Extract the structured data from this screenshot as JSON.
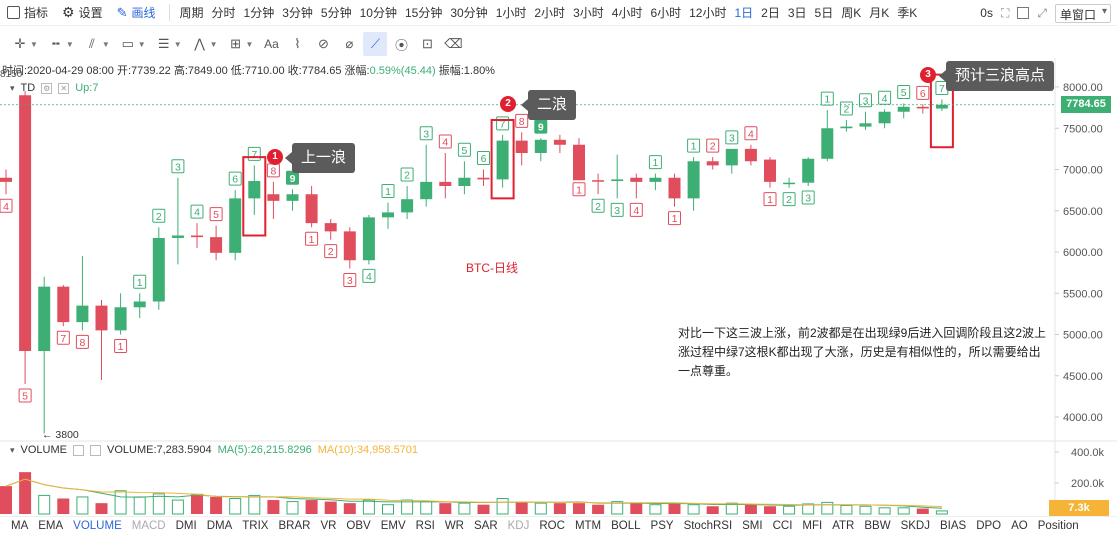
{
  "toolbar": {
    "indicators_label": "指标",
    "settings_label": "设置",
    "draw_label": "画线",
    "period_label": "周期",
    "periods": [
      "分时",
      "1分钟",
      "3分钟",
      "5分钟",
      "10分钟",
      "15分钟",
      "30分钟",
      "1小时",
      "2小时",
      "3小时",
      "4小时",
      "6小时",
      "12小时",
      "1日",
      "2日",
      "3日",
      "5日",
      "周K",
      "月K",
      "季K"
    ],
    "active_period": "1日",
    "countdown": "0s",
    "window_select": "单窗口"
  },
  "info": {
    "time": "时间:2020-04-29 08:00",
    "open": "开:7739.22",
    "high": "高:7849.00",
    "low": "低:7710.00",
    "close": "收:7784.65",
    "change_label": "涨幅:",
    "change": "0.59%(45.44)",
    "amplitude": "振幅:1.80%"
  },
  "td_legend": {
    "name": "TD",
    "value": "Up:7"
  },
  "volume_legend": {
    "name": "VOLUME",
    "volume": "VOLUME:7,283.5904",
    "ma5": "MA(5):26,215.8296",
    "ma10": "MA(10):34,958.5701"
  },
  "price_tag": "7784.65",
  "vol_tag": "7.3k",
  "callouts": [
    {
      "num": "1",
      "text": "上一浪"
    },
    {
      "num": "2",
      "text": "二浪"
    },
    {
      "num": "3",
      "text": "预计三浪高点"
    }
  ],
  "note": "对比一下这三波上涨，前2波都是在出现绿9后进入回调阶段且这2波上涨过程中绿7这根K都出现了大涨，历史是有相似性的，所以需要给出一点尊重。",
  "chart_label": "BTC-日线",
  "low_marker": "← 3800",
  "top_price": "8150",
  "indicator_tabs": [
    "MA",
    "EMA",
    "VOLUME",
    "MACD",
    "DMI",
    "DMA",
    "TRIX",
    "BRAR",
    "VR",
    "OBV",
    "EMV",
    "RSI",
    "WR",
    "SAR",
    "KDJ",
    "ROC",
    "MTM",
    "BOLL",
    "PSY",
    "StochRSI",
    "SMI",
    "CCI",
    "MFI",
    "ATR",
    "BBW",
    "SKDJ",
    "BIAS",
    "DPO",
    "AO",
    "Position"
  ],
  "active_tab": "VOLUME",
  "dim_tabs": [
    "MACD",
    "KDJ"
  ],
  "colors": {
    "up": "#3dae74",
    "down": "#e04d5c",
    "accent": "#2b66d9",
    "ma5": "#3dae74",
    "ma10": "#f5b437",
    "box": "#e0202f"
  },
  "chart_data": {
    "type": "candlestick",
    "y_axis_ticks": [
      8000,
      7500,
      7000,
      6500,
      6000,
      5500,
      5000,
      4500,
      4000
    ],
    "ylim": [
      3700,
      8300
    ],
    "volume_ticks": [
      "400.0k",
      "200.0k"
    ],
    "candles": [
      {
        "o": 6900,
        "h": 7000,
        "l": 6700,
        "c": 6850,
        "td": "4",
        "tdPos": "below",
        "tdUp": false
      },
      {
        "o": 7900,
        "h": 7950,
        "l": 4400,
        "c": 4800,
        "td": "5",
        "tdPos": "below",
        "tdUp": false
      },
      {
        "o": 4800,
        "h": 5700,
        "l": 3800,
        "c": 5580,
        "td": "",
        "tdPos": "",
        "tdUp": true
      },
      {
        "o": 5580,
        "h": 5600,
        "l": 5100,
        "c": 5150,
        "td": "7",
        "tdPos": "below",
        "tdUp": false
      },
      {
        "o": 5150,
        "h": 5950,
        "l": 5050,
        "c": 5350,
        "td": "8",
        "tdPos": "below",
        "tdUp": false
      },
      {
        "o": 5350,
        "h": 5420,
        "l": 4450,
        "c": 5050,
        "td": "",
        "tdPos": "",
        "tdUp": false
      },
      {
        "o": 5050,
        "h": 5500,
        "l": 5000,
        "c": 5330,
        "td": "1",
        "tdPos": "below",
        "tdUp": false
      },
      {
        "o": 5330,
        "h": 5500,
        "l": 5200,
        "c": 5400,
        "td": "1",
        "tdPos": "above",
        "tdUp": true
      },
      {
        "o": 5400,
        "h": 6300,
        "l": 5300,
        "c": 6170,
        "td": "2",
        "tdPos": "above",
        "tdUp": true
      },
      {
        "o": 6170,
        "h": 6900,
        "l": 5850,
        "c": 6200,
        "td": "3",
        "tdPos": "above",
        "tdUp": true
      },
      {
        "o": 6200,
        "h": 6350,
        "l": 6050,
        "c": 6180,
        "td": "4",
        "tdPos": "above",
        "tdUp": true
      },
      {
        "o": 6180,
        "h": 6320,
        "l": 5900,
        "c": 5990,
        "td": "5",
        "tdPos": "above",
        "tdUp": false
      },
      {
        "o": 5990,
        "h": 6750,
        "l": 5900,
        "c": 6650,
        "td": "6",
        "tdPos": "above",
        "tdUp": true
      },
      {
        "o": 6650,
        "h": 7050,
        "l": 6450,
        "c": 6860,
        "td": "7",
        "tdPos": "above",
        "tdUp": true
      },
      {
        "o": 6700,
        "h": 6850,
        "l": 6400,
        "c": 6620,
        "td": "8",
        "tdPos": "above",
        "tdUp": false
      },
      {
        "o": 6620,
        "h": 6760,
        "l": 6500,
        "c": 6700,
        "td": "9",
        "tdPos": "above",
        "tdUp": true,
        "tdFilled": true
      },
      {
        "o": 6700,
        "h": 6800,
        "l": 6300,
        "c": 6350,
        "td": "1",
        "tdPos": "below",
        "tdUp": false
      },
      {
        "o": 6350,
        "h": 6400,
        "l": 6150,
        "c": 6250,
        "td": "2",
        "tdPos": "below",
        "tdUp": false
      },
      {
        "o": 6250,
        "h": 6300,
        "l": 5800,
        "c": 5900,
        "td": "3",
        "tdPos": "below",
        "tdUp": false
      },
      {
        "o": 5900,
        "h": 6450,
        "l": 5850,
        "c": 6420,
        "td": "4",
        "tdPos": "below",
        "tdUp": true
      },
      {
        "o": 6420,
        "h": 6600,
        "l": 6280,
        "c": 6480,
        "td": "1",
        "tdPos": "above",
        "tdUp": true
      },
      {
        "o": 6480,
        "h": 6800,
        "l": 6400,
        "c": 6640,
        "td": "2",
        "tdPos": "above",
        "tdUp": true
      },
      {
        "o": 6640,
        "h": 7300,
        "l": 6550,
        "c": 6850,
        "td": "3",
        "tdPos": "above",
        "tdUp": true
      },
      {
        "o": 6850,
        "h": 7200,
        "l": 6650,
        "c": 6800,
        "td": "4",
        "tdPos": "above",
        "tdUp": false
      },
      {
        "o": 6800,
        "h": 7100,
        "l": 6700,
        "c": 6900,
        "td": "5",
        "tdPos": "above",
        "tdUp": true
      },
      {
        "o": 6900,
        "h": 7000,
        "l": 6800,
        "c": 6880,
        "td": "6",
        "tdPos": "above",
        "tdUp": true
      },
      {
        "o": 6880,
        "h": 7420,
        "l": 6780,
        "c": 7350,
        "td": "7",
        "tdPos": "above",
        "tdUp": true
      },
      {
        "o": 7350,
        "h": 7450,
        "l": 7050,
        "c": 7200,
        "td": "8",
        "tdPos": "above",
        "tdUp": false
      },
      {
        "o": 7200,
        "h": 7380,
        "l": 7100,
        "c": 7360,
        "td": "9",
        "tdPos": "above",
        "tdUp": true,
        "tdFilled": true
      },
      {
        "o": 7360,
        "h": 7420,
        "l": 7200,
        "c": 7300,
        "td": "",
        "tdPos": "",
        "tdUp": false
      },
      {
        "o": 7300,
        "h": 7380,
        "l": 6900,
        "c": 6870,
        "td": "1",
        "tdPos": "below",
        "tdUp": false
      },
      {
        "o": 6870,
        "h": 6950,
        "l": 6700,
        "c": 6860,
        "td": "2",
        "tdPos": "below",
        "tdUp": true
      },
      {
        "o": 6860,
        "h": 7180,
        "l": 6650,
        "c": 6880,
        "td": "3",
        "tdPos": "below",
        "tdUp": true
      },
      {
        "o": 6900,
        "h": 6950,
        "l": 6650,
        "c": 6850,
        "td": "4",
        "tdPos": "below",
        "tdUp": false
      },
      {
        "o": 6850,
        "h": 6950,
        "l": 6750,
        "c": 6900,
        "td": "1",
        "tdPos": "above",
        "tdUp": true
      },
      {
        "o": 6900,
        "h": 6950,
        "l": 6550,
        "c": 6650,
        "td": "1",
        "tdPos": "below",
        "tdUp": false
      },
      {
        "o": 6650,
        "h": 7150,
        "l": 6500,
        "c": 7100,
        "td": "1",
        "tdPos": "above",
        "tdUp": true
      },
      {
        "o": 7100,
        "h": 7150,
        "l": 7000,
        "c": 7050,
        "td": "2",
        "tdPos": "above",
        "tdUp": false
      },
      {
        "o": 7050,
        "h": 7250,
        "l": 6950,
        "c": 7250,
        "td": "3",
        "tdPos": "above",
        "tdUp": true
      },
      {
        "o": 7250,
        "h": 7300,
        "l": 7050,
        "c": 7100,
        "td": "4",
        "tdPos": "above",
        "tdUp": false
      },
      {
        "o": 7120,
        "h": 7150,
        "l": 6780,
        "c": 6850,
        "td": "1",
        "tdPos": "below",
        "tdUp": false
      },
      {
        "o": 6830,
        "h": 6900,
        "l": 6780,
        "c": 6840,
        "td": "2",
        "tdPos": "below",
        "tdUp": true
      },
      {
        "o": 6840,
        "h": 7150,
        "l": 6800,
        "c": 7130,
        "td": "3",
        "tdPos": "below",
        "tdUp": true
      },
      {
        "o": 7130,
        "h": 7720,
        "l": 7100,
        "c": 7500,
        "td": "1",
        "tdPos": "above",
        "tdUp": true
      },
      {
        "o": 7500,
        "h": 7600,
        "l": 7460,
        "c": 7520,
        "td": "2",
        "tdPos": "above",
        "tdUp": true
      },
      {
        "o": 7520,
        "h": 7700,
        "l": 7480,
        "c": 7560,
        "td": "3",
        "tdPos": "above",
        "tdUp": true
      },
      {
        "o": 7560,
        "h": 7730,
        "l": 7500,
        "c": 7700,
        "td": "4",
        "tdPos": "above",
        "tdUp": true
      },
      {
        "o": 7700,
        "h": 7800,
        "l": 7620,
        "c": 7760,
        "td": "5",
        "tdPos": "above",
        "tdUp": true
      },
      {
        "o": 7760,
        "h": 7790,
        "l": 7680,
        "c": 7740,
        "td": "6",
        "tdPos": "above",
        "tdUp": false
      },
      {
        "o": 7739,
        "h": 7849,
        "l": 7710,
        "c": 7785,
        "td": "7",
        "tdPos": "above",
        "tdUp": true
      }
    ],
    "volumes": [
      180,
      270,
      120,
      100,
      110,
      70,
      150,
      110,
      130,
      90,
      130,
      110,
      100,
      120,
      90,
      80,
      90,
      80,
      70,
      90,
      60,
      90,
      80,
      70,
      70,
      60,
      100,
      80,
      70,
      70,
      70,
      60,
      80,
      70,
      60,
      65,
      60,
      50,
      70,
      60,
      50,
      50,
      65,
      75,
      55,
      50,
      40,
      40,
      35,
      20
    ],
    "boxes": [
      {
        "from": 13,
        "to": 13,
        "top": 7150,
        "bottom": 6200
      },
      {
        "from": 26,
        "to": 26,
        "top": 7600,
        "bottom": 6650
      },
      {
        "from": 49,
        "to": 49,
        "top": 8150,
        "bottom": 7270
      }
    ]
  }
}
